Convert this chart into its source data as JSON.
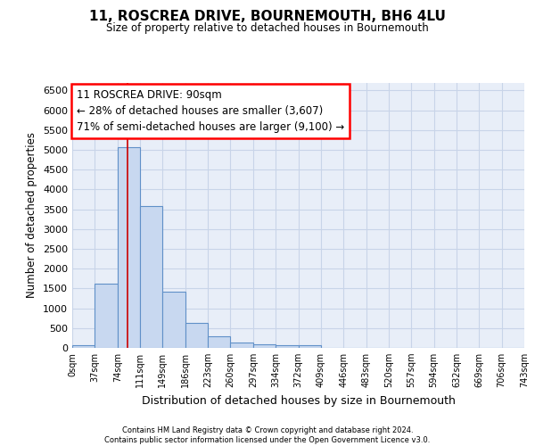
{
  "title": "11, ROSCREA DRIVE, BOURNEMOUTH, BH6 4LU",
  "subtitle": "Size of property relative to detached houses in Bournemouth",
  "xlabel": "Distribution of detached houses by size in Bournemouth",
  "ylabel": "Number of detached properties",
  "footer_line1": "Contains HM Land Registry data © Crown copyright and database right 2024.",
  "footer_line2": "Contains public sector information licensed under the Open Government Licence v3.0.",
  "bin_labels": [
    "0sqm",
    "37sqm",
    "74sqm",
    "111sqm",
    "149sqm",
    "186sqm",
    "223sqm",
    "260sqm",
    "297sqm",
    "334sqm",
    "372sqm",
    "409sqm",
    "446sqm",
    "483sqm",
    "520sqm",
    "557sqm",
    "594sqm",
    "632sqm",
    "669sqm",
    "706sqm",
    "743sqm"
  ],
  "bar_values": [
    70,
    1630,
    5060,
    3570,
    1410,
    620,
    290,
    140,
    100,
    70,
    60,
    0,
    0,
    0,
    0,
    0,
    0,
    0,
    0,
    0
  ],
  "bar_color": "#c8d8f0",
  "bar_edge_color": "#6090c8",
  "annotation_line1": "11 ROSCREA DRIVE: 90sqm",
  "annotation_line2": "← 28% of detached houses are smaller (3,607)",
  "annotation_line3": "71% of semi-detached houses are larger (9,100) →",
  "vline_x": 90,
  "vline_color": "#cc0000",
  "ylim": [
    0,
    6700
  ],
  "yticks": [
    0,
    500,
    1000,
    1500,
    2000,
    2500,
    3000,
    3500,
    4000,
    4500,
    5000,
    5500,
    6000,
    6500
  ],
  "grid_color": "#c8d4e8",
  "background_color": "#e8eef8",
  "bin_width": 37
}
